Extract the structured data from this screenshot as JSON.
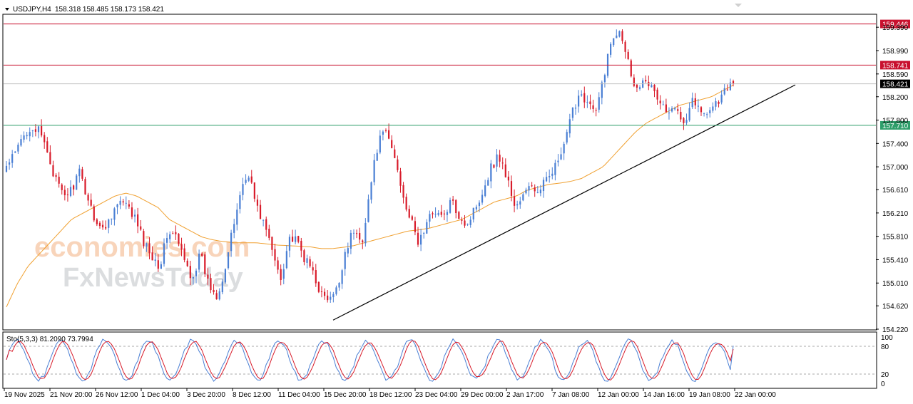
{
  "header": {
    "symbol": "USDJPY,H4",
    "ohlc": "158.318 158.485 158.173 158.421"
  },
  "watermark": {
    "line1": "economies.com",
    "line2": "FxNewsToday"
  },
  "stochastic": {
    "label": "Sto(5,3,3) 81.2090 73.7994",
    "k": 81.209,
    "d": 73.7994,
    "levels": [
      20,
      80
    ],
    "scale_labels": [
      "100",
      "80",
      "20",
      "0"
    ],
    "colors": {
      "k": "#4a7fd4",
      "d": "#d81b2a"
    }
  },
  "chart_data": {
    "type": "candlestick",
    "title": "USDJPY,H4",
    "ylim": [
      154.22,
      159.6
    ],
    "y_ticks": [
      159.39,
      158.99,
      158.59,
      158.2,
      157.8,
      157.4,
      157.0,
      156.61,
      156.21,
      155.81,
      155.41,
      155.01,
      154.62,
      154.22
    ],
    "y_tick_labels": [
      "159.390",
      "158.990",
      "158.590",
      "158.200",
      "157.800",
      "157.400",
      "157.000",
      "156.610",
      "156.210",
      "155.810",
      "155.410",
      "155.010",
      "154.620",
      "154.220"
    ],
    "x_tick_labels": [
      "19 Nov 2025",
      "21 Nov 20:00",
      "26 Nov 12:00",
      "1 Dec 04:00",
      "3 Dec 20:00",
      "8 Dec 12:00",
      "11 Dec 04:00",
      "15 Dec 20:00",
      "18 Dec 12:00",
      "23 Dec 04:00",
      "29 Dec 00:00",
      "2 Jan 17:00",
      "7 Jan 08:00",
      "12 Jan 00:00",
      "14 Jan 16:00",
      "19 Jan 08:00",
      "22 Jan 00:00"
    ],
    "horizontal_levels": [
      {
        "value": 159.446,
        "label": "159.446",
        "color": "#c8102e"
      },
      {
        "value": 158.741,
        "label": "158.741",
        "color": "#c8102e"
      },
      {
        "value": 158.421,
        "label": "158.421",
        "color": "#000000"
      },
      {
        "value": 157.71,
        "label": "157.710",
        "color": "#2e9e6a"
      }
    ],
    "trendline": {
      "from": [
        "15 Dec 20:00",
        154.4
      ],
      "to": [
        "22 Jan 00:00",
        158.4
      ]
    },
    "colors": {
      "up": "#4a7fd4",
      "down": "#d81b2a",
      "ma": "#f0a030",
      "trendline": "#000000"
    },
    "path": [
      157.0,
      157.2,
      157.5,
      157.7,
      157.6,
      157.3,
      156.8,
      156.5,
      156.6,
      156.9,
      156.5,
      156.1,
      155.9,
      156.2,
      156.4,
      156.3,
      156.1,
      155.7,
      155.5,
      155.3,
      155.9,
      155.8,
      155.4,
      155.1,
      155.5,
      155.0,
      154.8,
      155.2,
      155.9,
      156.6,
      156.9,
      156.3,
      156.0,
      155.5,
      155.1,
      155.8,
      155.7,
      155.4,
      155.2,
      154.8,
      154.7,
      154.9,
      155.6,
      155.9,
      155.7,
      156.6,
      157.4,
      157.6,
      157.2,
      156.6,
      156.1,
      155.7,
      156.0,
      156.3,
      156.1,
      156.4,
      156.2,
      156.0,
      156.3,
      156.6,
      157.0,
      157.2,
      156.8,
      156.3,
      156.5,
      156.7,
      156.5,
      156.9,
      157.0,
      157.3,
      157.9,
      158.3,
      158.1,
      157.9,
      158.6,
      159.2,
      159.4,
      158.8,
      158.3,
      158.6,
      158.3,
      158.1,
      157.9,
      158.0,
      157.8,
      158.2,
      157.9,
      158.0,
      158.1,
      158.3,
      158.42
    ],
    "ma_path": [
      154.6,
      155.0,
      155.3,
      155.5,
      155.7,
      155.9,
      156.1,
      156.2,
      156.3,
      156.4,
      156.5,
      156.55,
      156.5,
      156.4,
      156.3,
      156.1,
      156.0,
      155.9,
      155.8,
      155.75,
      155.72,
      155.7,
      155.7,
      155.7,
      155.68,
      155.66,
      155.65,
      155.64,
      155.63,
      155.6,
      155.6,
      155.62,
      155.65,
      155.7,
      155.75,
      155.8,
      155.85,
      155.9,
      155.92,
      155.95,
      156.0,
      156.05,
      156.1,
      156.2,
      156.3,
      156.4,
      156.45,
      156.5,
      156.6,
      156.65,
      156.7,
      156.72,
      156.75,
      156.8,
      156.9,
      157.0,
      157.2,
      157.4,
      157.6,
      157.75,
      157.85,
      157.95,
      158.05,
      158.1,
      158.15,
      158.2,
      158.3,
      158.4
    ]
  }
}
